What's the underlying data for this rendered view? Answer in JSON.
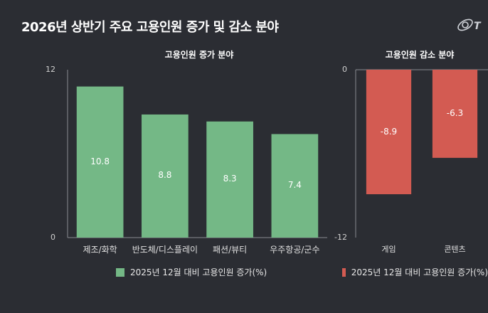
{
  "title": "2026년 상반기 주요 고용인원 증가 및 감소 분야",
  "logo_icon": "satellite-logo-icon",
  "colors": {
    "increase": "#74b886",
    "decrease": "#d35b52",
    "axis": "#8a8c92",
    "background": "#2b2d33"
  },
  "chart_data": [
    {
      "type": "bar",
      "title": "고용인원 증가 분야",
      "categories": [
        "제조/화학",
        "반도체/디스플레이",
        "패션/뷰티",
        "우주항공/군수"
      ],
      "values": [
        10.8,
        8.8,
        8.3,
        7.4
      ],
      "value_labels": [
        "10.8",
        "8.8",
        "8.3",
        "7.4"
      ],
      "ylim": [
        0,
        12
      ],
      "yticks": [
        "12",
        "0"
      ],
      "legend": "2025년 12월 대비 고용인원 증가(%)",
      "legend_position": "bottom",
      "grid": false
    },
    {
      "type": "bar",
      "title": "고용인원 감소 분야",
      "categories": [
        "게임",
        "콘텐츠"
      ],
      "values": [
        -8.9,
        -6.3
      ],
      "value_labels": [
        "-8.9",
        "-6.3"
      ],
      "ylim": [
        -12,
        0
      ],
      "yticks": [
        "0",
        "-12"
      ],
      "legend": "2025년 12월 대비 고용인원 증가(%)",
      "legend_position": "bottom",
      "grid": false
    }
  ]
}
